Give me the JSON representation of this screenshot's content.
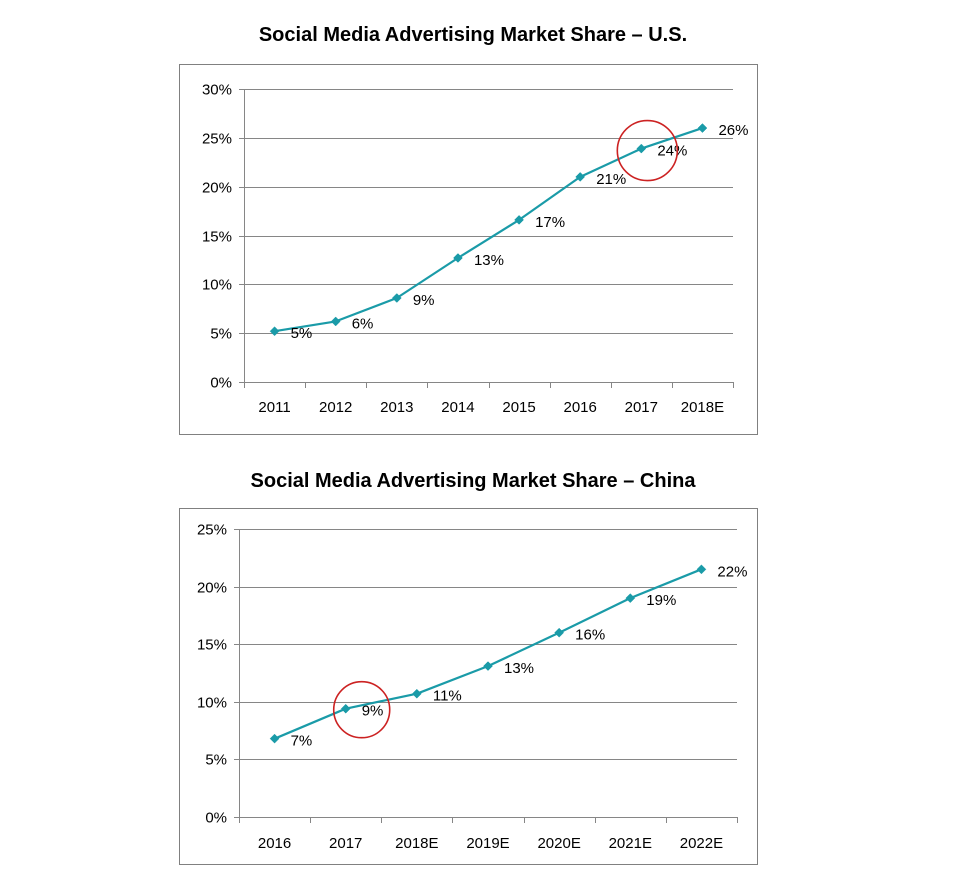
{
  "chart_data": [
    {
      "type": "line",
      "title": "Social Media Advertising Market Share – U.S.",
      "categories": [
        "2011",
        "2012",
        "2013",
        "2014",
        "2015",
        "2016",
        "2017",
        "2018E"
      ],
      "series": [
        {
          "values": [
            5.2,
            6.2,
            8.6,
            12.7,
            16.6,
            21.0,
            23.9,
            26.0
          ],
          "labels": [
            "5%",
            "6%",
            "9%",
            "13%",
            "17%",
            "21%",
            "24%",
            "26%"
          ]
        }
      ],
      "ylim": [
        0,
        30
      ],
      "yticks": [
        0,
        5,
        10,
        15,
        20,
        25,
        30
      ],
      "ytick_labels": [
        "0%",
        "5%",
        "10%",
        "15%",
        "20%",
        "25%",
        "30%"
      ],
      "grid": true,
      "highlight_index": 6,
      "line_color": "#1a9ba8",
      "highlight_color": "#cc2222"
    },
    {
      "type": "line",
      "title": "Social Media Advertising Market Share – China",
      "categories": [
        "2016",
        "2017",
        "2018E",
        "2019E",
        "2020E",
        "2021E",
        "2022E"
      ],
      "series": [
        {
          "values": [
            6.8,
            9.4,
            10.7,
            13.1,
            16.0,
            19.0,
            21.5
          ],
          "labels": [
            "7%",
            "9%",
            "11%",
            "13%",
            "16%",
            "19%",
            "22%"
          ]
        }
      ],
      "ylim": [
        0,
        25
      ],
      "yticks": [
        0,
        5,
        10,
        15,
        20,
        25
      ],
      "ytick_labels": [
        "0%",
        "5%",
        "10%",
        "15%",
        "20%",
        "25%"
      ],
      "grid": true,
      "highlight_index": 1,
      "line_color": "#1a9ba8",
      "highlight_color": "#cc2222"
    }
  ]
}
